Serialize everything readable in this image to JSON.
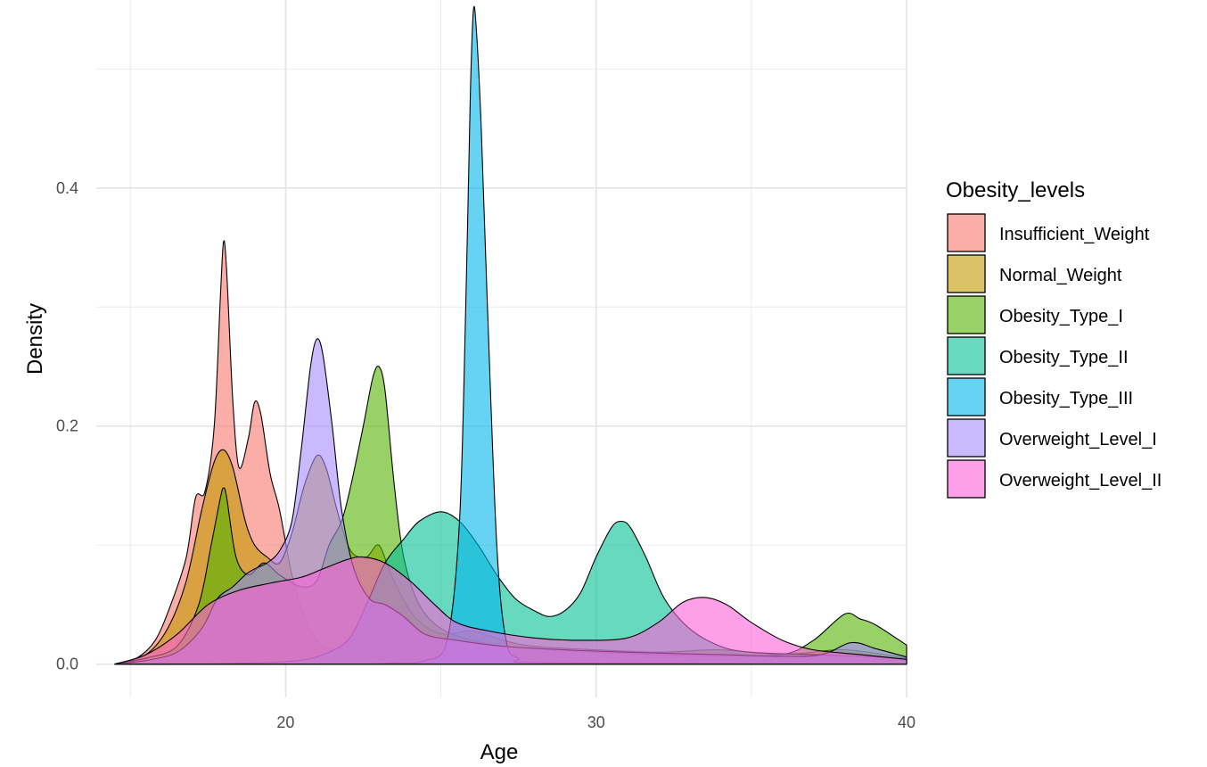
{
  "chart_data": {
    "type": "area",
    "xlabel": "Age",
    "ylabel": "Density",
    "xlim": [
      13.9,
      40.0
    ],
    "ylim": [
      -0.028,
      0.558
    ],
    "x_ticks": [
      20,
      30,
      40
    ],
    "y_ticks": [
      0.0,
      0.2,
      0.4
    ],
    "x_tick_labels": [
      "20",
      "30",
      "40"
    ],
    "y_tick_labels": [
      "0.0",
      "0.2",
      "0.4"
    ],
    "grid": true,
    "legend": {
      "title": "Obesity_levels",
      "position": "right"
    },
    "series": [
      {
        "name": "Insufficient_Weight",
        "color": "#F8766D",
        "points": [
          [
            14.5,
            0
          ],
          [
            15.2,
            0.005
          ],
          [
            15.8,
            0.02
          ],
          [
            16.3,
            0.05
          ],
          [
            16.8,
            0.09
          ],
          [
            17.1,
            0.14
          ],
          [
            17.4,
            0.145
          ],
          [
            17.7,
            0.2
          ],
          [
            17.9,
            0.31
          ],
          [
            18.0,
            0.355
          ],
          [
            18.1,
            0.33
          ],
          [
            18.3,
            0.22
          ],
          [
            18.5,
            0.165
          ],
          [
            18.8,
            0.19
          ],
          [
            19.0,
            0.22
          ],
          [
            19.2,
            0.21
          ],
          [
            19.5,
            0.16
          ],
          [
            19.8,
            0.13
          ],
          [
            20.2,
            0.075
          ],
          [
            20.6,
            0.04
          ],
          [
            21.0,
            0.02
          ],
          [
            21.5,
            0.012
          ],
          [
            22.0,
            0.01
          ],
          [
            22.5,
            0.008
          ],
          [
            23.5,
            0.005
          ],
          [
            25,
            0.003
          ],
          [
            27,
            0.002
          ],
          [
            30,
            0.001
          ],
          [
            35,
            0.0005
          ],
          [
            40,
            0
          ]
        ]
      },
      {
        "name": "Normal_Weight",
        "color": "#C49A00",
        "points": [
          [
            14.5,
            0
          ],
          [
            15.5,
            0.008
          ],
          [
            16.2,
            0.03
          ],
          [
            16.8,
            0.07
          ],
          [
            17.3,
            0.13
          ],
          [
            17.7,
            0.17
          ],
          [
            18.0,
            0.18
          ],
          [
            18.3,
            0.165
          ],
          [
            18.7,
            0.12
          ],
          [
            19.0,
            0.1
          ],
          [
            19.4,
            0.09
          ],
          [
            19.8,
            0.085
          ],
          [
            20.2,
            0.11
          ],
          [
            20.6,
            0.15
          ],
          [
            21.0,
            0.175
          ],
          [
            21.3,
            0.165
          ],
          [
            21.7,
            0.125
          ],
          [
            22.1,
            0.095
          ],
          [
            22.6,
            0.09
          ],
          [
            23.0,
            0.1
          ],
          [
            23.4,
            0.075
          ],
          [
            24.0,
            0.045
          ],
          [
            24.6,
            0.03
          ],
          [
            25.2,
            0.025
          ],
          [
            26.0,
            0.028
          ],
          [
            27.0,
            0.02
          ],
          [
            28.0,
            0.015
          ],
          [
            30.0,
            0.012
          ],
          [
            32.0,
            0.01
          ],
          [
            34.0,
            0.012
          ],
          [
            36.0,
            0.008
          ],
          [
            38.0,
            0.012
          ],
          [
            40,
            0.005
          ]
        ]
      },
      {
        "name": "Obesity_Type_I",
        "color": "#53B400",
        "points": [
          [
            14.5,
            0
          ],
          [
            15.5,
            0.005
          ],
          [
            16.5,
            0.015
          ],
          [
            17.2,
            0.05
          ],
          [
            17.6,
            0.1
          ],
          [
            17.9,
            0.14
          ],
          [
            18.0,
            0.148
          ],
          [
            18.1,
            0.14
          ],
          [
            18.4,
            0.09
          ],
          [
            18.8,
            0.075
          ],
          [
            19.3,
            0.085
          ],
          [
            19.8,
            0.075
          ],
          [
            20.5,
            0.065
          ],
          [
            21.0,
            0.07
          ],
          [
            21.4,
            0.1
          ],
          [
            21.8,
            0.12
          ],
          [
            22.1,
            0.15
          ],
          [
            22.5,
            0.2
          ],
          [
            22.8,
            0.24
          ],
          [
            23.0,
            0.25
          ],
          [
            23.2,
            0.23
          ],
          [
            23.5,
            0.15
          ],
          [
            23.8,
            0.09
          ],
          [
            24.3,
            0.05
          ],
          [
            25.0,
            0.03
          ],
          [
            26.0,
            0.02
          ],
          [
            27.0,
            0.015
          ],
          [
            28.0,
            0.013
          ],
          [
            30.0,
            0.01
          ],
          [
            32.0,
            0.008
          ],
          [
            34.0,
            0.007
          ],
          [
            36.0,
            0.008
          ],
          [
            37.0,
            0.02
          ],
          [
            38.0,
            0.042
          ],
          [
            38.5,
            0.038
          ],
          [
            39.0,
            0.033
          ],
          [
            40,
            0.016
          ]
        ]
      },
      {
        "name": "Obesity_Type_II",
        "color": "#00C094",
        "points": [
          [
            14.5,
            0
          ],
          [
            17.0,
            0
          ],
          [
            19.0,
            0.001
          ],
          [
            20.0,
            0.002
          ],
          [
            21.0,
            0.006
          ],
          [
            22.0,
            0.02
          ],
          [
            22.6,
            0.05
          ],
          [
            23.2,
            0.085
          ],
          [
            23.8,
            0.105
          ],
          [
            24.3,
            0.12
          ],
          [
            25.0,
            0.128
          ],
          [
            25.6,
            0.12
          ],
          [
            26.2,
            0.1
          ],
          [
            26.8,
            0.075
          ],
          [
            27.4,
            0.055
          ],
          [
            28.0,
            0.045
          ],
          [
            28.5,
            0.04
          ],
          [
            29.0,
            0.045
          ],
          [
            29.5,
            0.06
          ],
          [
            30.0,
            0.09
          ],
          [
            30.5,
            0.115
          ],
          [
            30.8,
            0.12
          ],
          [
            31.1,
            0.115
          ],
          [
            31.6,
            0.09
          ],
          [
            32.2,
            0.055
          ],
          [
            33.0,
            0.03
          ],
          [
            34.0,
            0.015
          ],
          [
            35.0,
            0.01
          ],
          [
            37.0,
            0.008
          ],
          [
            39.0,
            0.006
          ],
          [
            40,
            0.004
          ]
        ]
      },
      {
        "name": "Obesity_Type_III",
        "color": "#00B6EB",
        "points": [
          [
            14.5,
            0
          ],
          [
            22.0,
            0
          ],
          [
            23.5,
            0.001
          ],
          [
            24.5,
            0.003
          ],
          [
            25.2,
            0.02
          ],
          [
            25.6,
            0.12
          ],
          [
            25.8,
            0.3
          ],
          [
            25.95,
            0.48
          ],
          [
            26.05,
            0.55
          ],
          [
            26.15,
            0.53
          ],
          [
            26.3,
            0.45
          ],
          [
            26.5,
            0.3
          ],
          [
            26.8,
            0.1
          ],
          [
            27.1,
            0.02
          ],
          [
            27.5,
            0.005
          ],
          [
            28.5,
            0.001
          ],
          [
            40,
            0
          ]
        ]
      },
      {
        "name": "Overweight_Level_I",
        "color": "#A58AFF",
        "points": [
          [
            14.5,
            0
          ],
          [
            15.5,
            0.003
          ],
          [
            16.5,
            0.01
          ],
          [
            17.3,
            0.03
          ],
          [
            17.8,
            0.055
          ],
          [
            18.3,
            0.065
          ],
          [
            18.7,
            0.075
          ],
          [
            19.0,
            0.08
          ],
          [
            19.4,
            0.085
          ],
          [
            19.8,
            0.095
          ],
          [
            20.2,
            0.12
          ],
          [
            20.5,
            0.18
          ],
          [
            20.8,
            0.25
          ],
          [
            21.0,
            0.273
          ],
          [
            21.2,
            0.26
          ],
          [
            21.5,
            0.2
          ],
          [
            21.8,
            0.13
          ],
          [
            22.2,
            0.08
          ],
          [
            22.7,
            0.055
          ],
          [
            23.2,
            0.05
          ],
          [
            23.8,
            0.04
          ],
          [
            24.5,
            0.025
          ],
          [
            25.5,
            0.02
          ],
          [
            27.0,
            0.015
          ],
          [
            29.0,
            0.012
          ],
          [
            31.0,
            0.01
          ],
          [
            34.0,
            0.008
          ],
          [
            37.0,
            0.007
          ],
          [
            38.2,
            0.018
          ],
          [
            39.0,
            0.013
          ],
          [
            40,
            0.006
          ]
        ]
      },
      {
        "name": "Overweight_Level_II",
        "color": "#FB61D7",
        "points": [
          [
            14.5,
            0
          ],
          [
            15.5,
            0.008
          ],
          [
            16.5,
            0.025
          ],
          [
            17.5,
            0.05
          ],
          [
            18.5,
            0.062
          ],
          [
            19.5,
            0.068
          ],
          [
            20.5,
            0.073
          ],
          [
            21.2,
            0.08
          ],
          [
            22.0,
            0.088
          ],
          [
            22.5,
            0.09
          ],
          [
            23.2,
            0.085
          ],
          [
            24.0,
            0.07
          ],
          [
            24.8,
            0.05
          ],
          [
            25.5,
            0.035
          ],
          [
            26.5,
            0.028
          ],
          [
            28.0,
            0.022
          ],
          [
            29.5,
            0.02
          ],
          [
            31.0,
            0.022
          ],
          [
            32.0,
            0.035
          ],
          [
            32.8,
            0.052
          ],
          [
            33.5,
            0.056
          ],
          [
            34.2,
            0.05
          ],
          [
            35.0,
            0.035
          ],
          [
            36.0,
            0.02
          ],
          [
            37.0,
            0.012
          ],
          [
            38.5,
            0.008
          ],
          [
            40,
            0.004
          ]
        ]
      }
    ]
  }
}
